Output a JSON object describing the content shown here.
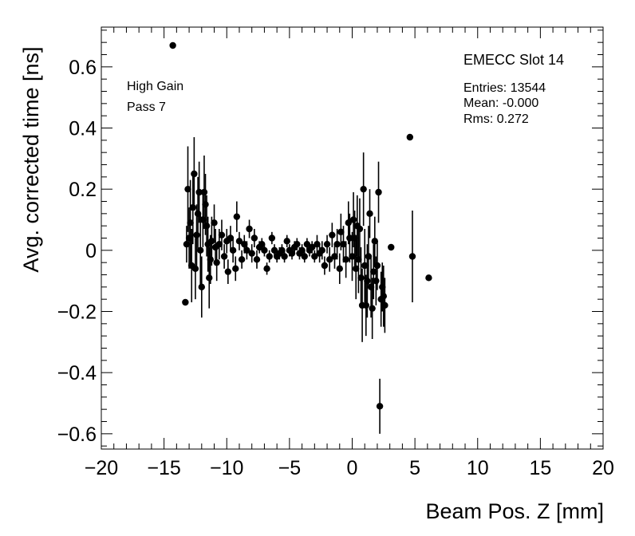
{
  "chart_data": {
    "type": "scatter",
    "title": "EMECC Slot 14",
    "xlabel": "Beam Pos. Z [mm]",
    "ylabel": "Avg. corrected time [ns]",
    "xlim": [
      -20,
      20
    ],
    "ylim": [
      -0.65,
      0.73
    ],
    "xticks": [
      "−20",
      "−15",
      "−10",
      "−5",
      "0",
      "5",
      "10",
      "15",
      "20"
    ],
    "xtick_values": [
      -20,
      -15,
      -10,
      -5,
      0,
      5,
      10,
      15,
      20
    ],
    "yticks": [
      "0.6",
      "0.4",
      "0.2",
      "0",
      "−0.2",
      "−0.4",
      "−0.6"
    ],
    "ytick_values": [
      0.6,
      0.4,
      0.2,
      0,
      -0.2,
      -0.4,
      -0.6
    ],
    "grid": false,
    "annotations": {
      "gain": "High Gain",
      "pass": "Pass 7"
    },
    "stats": {
      "entries": "Entries: 13544",
      "mean": "Mean: -0.000",
      "rms": "Rms: 0.272"
    },
    "marker_color": "#000000",
    "series": [
      {
        "points": [
          [
            -14.3,
            0.67,
            0.0
          ],
          [
            -13.3,
            -0.17,
            0.0
          ],
          [
            -13.2,
            0.02,
            0.06
          ],
          [
            -13.1,
            0.2,
            0.14
          ],
          [
            -13.0,
            0.04,
            0.1
          ],
          [
            -12.9,
            0.09,
            0.14
          ],
          [
            -12.8,
            -0.05,
            0.12
          ],
          [
            -12.7,
            0.14,
            0.12
          ],
          [
            -12.6,
            0.25,
            0.12
          ],
          [
            -12.5,
            -0.06,
            0.1
          ],
          [
            -12.4,
            0.05,
            0.1
          ],
          [
            -12.3,
            0.12,
            0.12
          ],
          [
            -12.2,
            0.19,
            0.1
          ],
          [
            -12.1,
            0.0,
            0.12
          ],
          [
            -12.0,
            -0.12,
            0.1
          ],
          [
            -11.9,
            0.1,
            0.09
          ],
          [
            -11.8,
            0.19,
            0.12
          ],
          [
            -11.7,
            0.15,
            0.1
          ],
          [
            -11.6,
            0.08,
            0.1
          ],
          [
            -11.5,
            0.02,
            0.09
          ],
          [
            -11.4,
            -0.09,
            0.1
          ],
          [
            -11.3,
            -0.03,
            0.08
          ],
          [
            -11.2,
            0.03,
            0.08
          ],
          [
            -11.0,
            0.09,
            0.06
          ],
          [
            -10.9,
            0.01,
            0.06
          ],
          [
            -10.8,
            -0.04,
            0.06
          ],
          [
            -10.6,
            0.02,
            0.05
          ],
          [
            -10.4,
            0.05,
            0.05
          ],
          [
            -10.2,
            -0.02,
            0.04
          ],
          [
            -10.0,
            0.03,
            0.04
          ],
          [
            -9.9,
            -0.07,
            0.04
          ],
          [
            -9.7,
            0.04,
            0.04
          ],
          [
            -9.5,
            0.0,
            0.04
          ],
          [
            -9.3,
            -0.06,
            0.04
          ],
          [
            -9.2,
            0.11,
            0.05
          ],
          [
            -9.0,
            0.03,
            0.03
          ],
          [
            -8.8,
            -0.03,
            0.03
          ],
          [
            -8.6,
            0.02,
            0.03
          ],
          [
            -8.4,
            0.0,
            0.03
          ],
          [
            -8.2,
            0.07,
            0.03
          ],
          [
            -8.0,
            -0.01,
            0.03
          ],
          [
            -7.8,
            0.04,
            0.03
          ],
          [
            -7.6,
            -0.03,
            0.03
          ],
          [
            -7.4,
            0.01,
            0.02
          ],
          [
            -7.2,
            0.02,
            0.02
          ],
          [
            -7.0,
            0.0,
            0.02
          ],
          [
            -6.8,
            -0.06,
            0.02
          ],
          [
            -6.6,
            -0.02,
            0.02
          ],
          [
            -6.4,
            0.04,
            0.02
          ],
          [
            -6.2,
            0.0,
            0.02
          ],
          [
            -6.0,
            -0.02,
            0.02
          ],
          [
            -5.8,
            -0.01,
            0.02
          ],
          [
            -5.6,
            0.0,
            0.02
          ],
          [
            -5.4,
            -0.02,
            0.02
          ],
          [
            -5.2,
            0.03,
            0.02
          ],
          [
            -5.0,
            0.0,
            0.02
          ],
          [
            -4.8,
            -0.01,
            0.02
          ],
          [
            -4.6,
            0.01,
            0.02
          ],
          [
            -4.4,
            0.02,
            0.02
          ],
          [
            -4.2,
            -0.01,
            0.02
          ],
          [
            -4.0,
            0.0,
            0.02
          ],
          [
            -3.8,
            -0.02,
            0.02
          ],
          [
            -3.6,
            0.02,
            0.02
          ],
          [
            -3.4,
            0.0,
            0.02
          ],
          [
            -3.2,
            0.01,
            0.02
          ],
          [
            -3.0,
            -0.02,
            0.02
          ],
          [
            -2.8,
            0.02,
            0.03
          ],
          [
            -2.6,
            -0.01,
            0.03
          ],
          [
            -2.4,
            0.0,
            0.03
          ],
          [
            -2.2,
            -0.05,
            0.03
          ],
          [
            -2.0,
            0.02,
            0.03
          ],
          [
            -1.8,
            -0.03,
            0.04
          ],
          [
            -1.6,
            0.05,
            0.04
          ],
          [
            -1.4,
            -0.02,
            0.04
          ],
          [
            -1.2,
            0.02,
            0.05
          ],
          [
            -1.0,
            -0.06,
            0.05
          ],
          [
            -0.9,
            0.06,
            0.06
          ],
          [
            -0.7,
            0.02,
            0.06
          ],
          [
            -0.5,
            -0.03,
            0.06
          ],
          [
            -0.3,
            0.09,
            0.07
          ],
          [
            -0.2,
            0.04,
            0.08
          ],
          [
            0.0,
            -0.02,
            0.08
          ],
          [
            0.1,
            0.1,
            0.09
          ],
          [
            0.2,
            0.04,
            0.09
          ],
          [
            0.3,
            -0.06,
            0.1
          ],
          [
            0.4,
            0.08,
            0.1
          ],
          [
            0.5,
            -0.03,
            0.11
          ],
          [
            0.6,
            0.07,
            0.1
          ],
          [
            0.7,
            -0.09,
            0.1
          ],
          [
            0.8,
            -0.18,
            0.12
          ],
          [
            0.9,
            0.2,
            0.12
          ],
          [
            1.0,
            -0.05,
            0.12
          ],
          [
            1.1,
            -0.18,
            0.1
          ],
          [
            1.2,
            -0.1,
            0.12
          ],
          [
            1.3,
            -0.02,
            0.1
          ],
          [
            1.4,
            0.12,
            0.08
          ],
          [
            1.5,
            -0.12,
            0.1
          ],
          [
            1.6,
            -0.19,
            0.1
          ],
          [
            1.7,
            -0.07,
            0.09
          ],
          [
            1.8,
            0.03,
            0.08
          ],
          [
            1.9,
            -0.1,
            0.08
          ],
          [
            2.0,
            -0.05,
            0.08
          ],
          [
            2.1,
            0.19,
            0.1
          ],
          [
            2.2,
            -0.51,
            0.09
          ],
          [
            2.3,
            -0.16,
            0.09
          ],
          [
            2.4,
            -0.12,
            0.08
          ],
          [
            2.5,
            -0.15,
            0.1
          ],
          [
            2.6,
            -0.18,
            0.09
          ],
          [
            3.1,
            0.01,
            0.0
          ],
          [
            4.6,
            0.37,
            0.0
          ],
          [
            4.8,
            -0.02,
            0.15
          ],
          [
            6.1,
            -0.09,
            0.0
          ]
        ]
      }
    ]
  }
}
